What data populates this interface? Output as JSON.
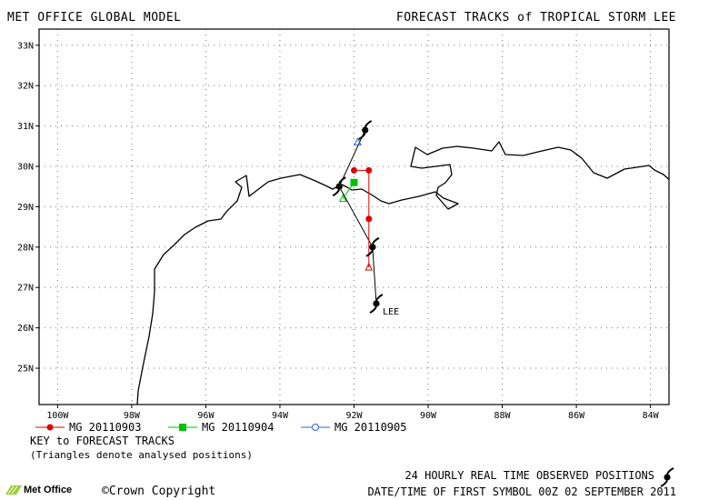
{
  "header": {
    "left_title": "MET OFFICE GLOBAL MODEL",
    "right_title": "FORECAST TRACKS of TROPICAL STORM LEE"
  },
  "map": {
    "lon_ticks": [
      "100W",
      "98W",
      "96W",
      "94W",
      "92W",
      "90W",
      "88W",
      "86W",
      "84W"
    ],
    "lat_ticks": [
      "33N",
      "32N",
      "31N",
      "30N",
      "29N",
      "28N",
      "27N",
      "26N",
      "25N"
    ],
    "storm_label": "LEE"
  },
  "legend": {
    "items": [
      {
        "label": "MG 20110903",
        "color": "#e00000",
        "marker": "circle"
      },
      {
        "label": "MG 20110904",
        "color": "#00c000",
        "marker": "square"
      },
      {
        "label": "MG 20110905",
        "color": "#3060d0",
        "marker": "open-circle"
      }
    ],
    "key_title": "KEY to FORECAST TRACKS",
    "key_note": "(Triangles denote analysed positions)"
  },
  "footer": {
    "observed_note": "24 HOURLY REAL TIME OBSERVED POSITIONS",
    "datetime_note": "DATE/TIME OF FIRST SYMBOL 00Z 02 SEPTEMBER 2011",
    "copyright": "Crown Copyright",
    "logo_text": "Met Office"
  },
  "chart_data": {
    "type": "scatter",
    "title": "FORECAST TRACKS of TROPICAL STORM LEE",
    "x_axis": "longitude (degrees E)",
    "y_axis": "latitude (degrees N)",
    "xlim": [
      -100.5,
      -83.5
    ],
    "ylim": [
      24.1,
      33.4
    ],
    "grid": true,
    "legend_position": "bottom-left",
    "observed_track": {
      "name": "24 HOURLY REAL TIME OBSERVED POSITIONS",
      "points": [
        [
          -91.4,
          26.6
        ],
        [
          -91.5,
          28.0
        ],
        [
          -92.4,
          29.5
        ],
        [
          -91.7,
          30.9
        ]
      ],
      "label": "LEE"
    },
    "series": [
      {
        "name": "MG 20110903",
        "color": "#e00000",
        "analysed": [
          [
            -91.6,
            27.5
          ]
        ],
        "forecast": [
          [
            -91.6,
            28.7
          ],
          [
            -91.6,
            29.9
          ],
          [
            -92.0,
            29.9
          ]
        ]
      },
      {
        "name": "MG 20110904",
        "color": "#00c000",
        "analysed": [
          [
            -92.3,
            29.2
          ]
        ],
        "forecast": [
          [
            -92.0,
            29.6
          ]
        ]
      },
      {
        "name": "MG 20110905",
        "color": "#3060d0",
        "analysed": [
          [
            -91.9,
            30.6
          ]
        ],
        "forecast": []
      }
    ]
  }
}
